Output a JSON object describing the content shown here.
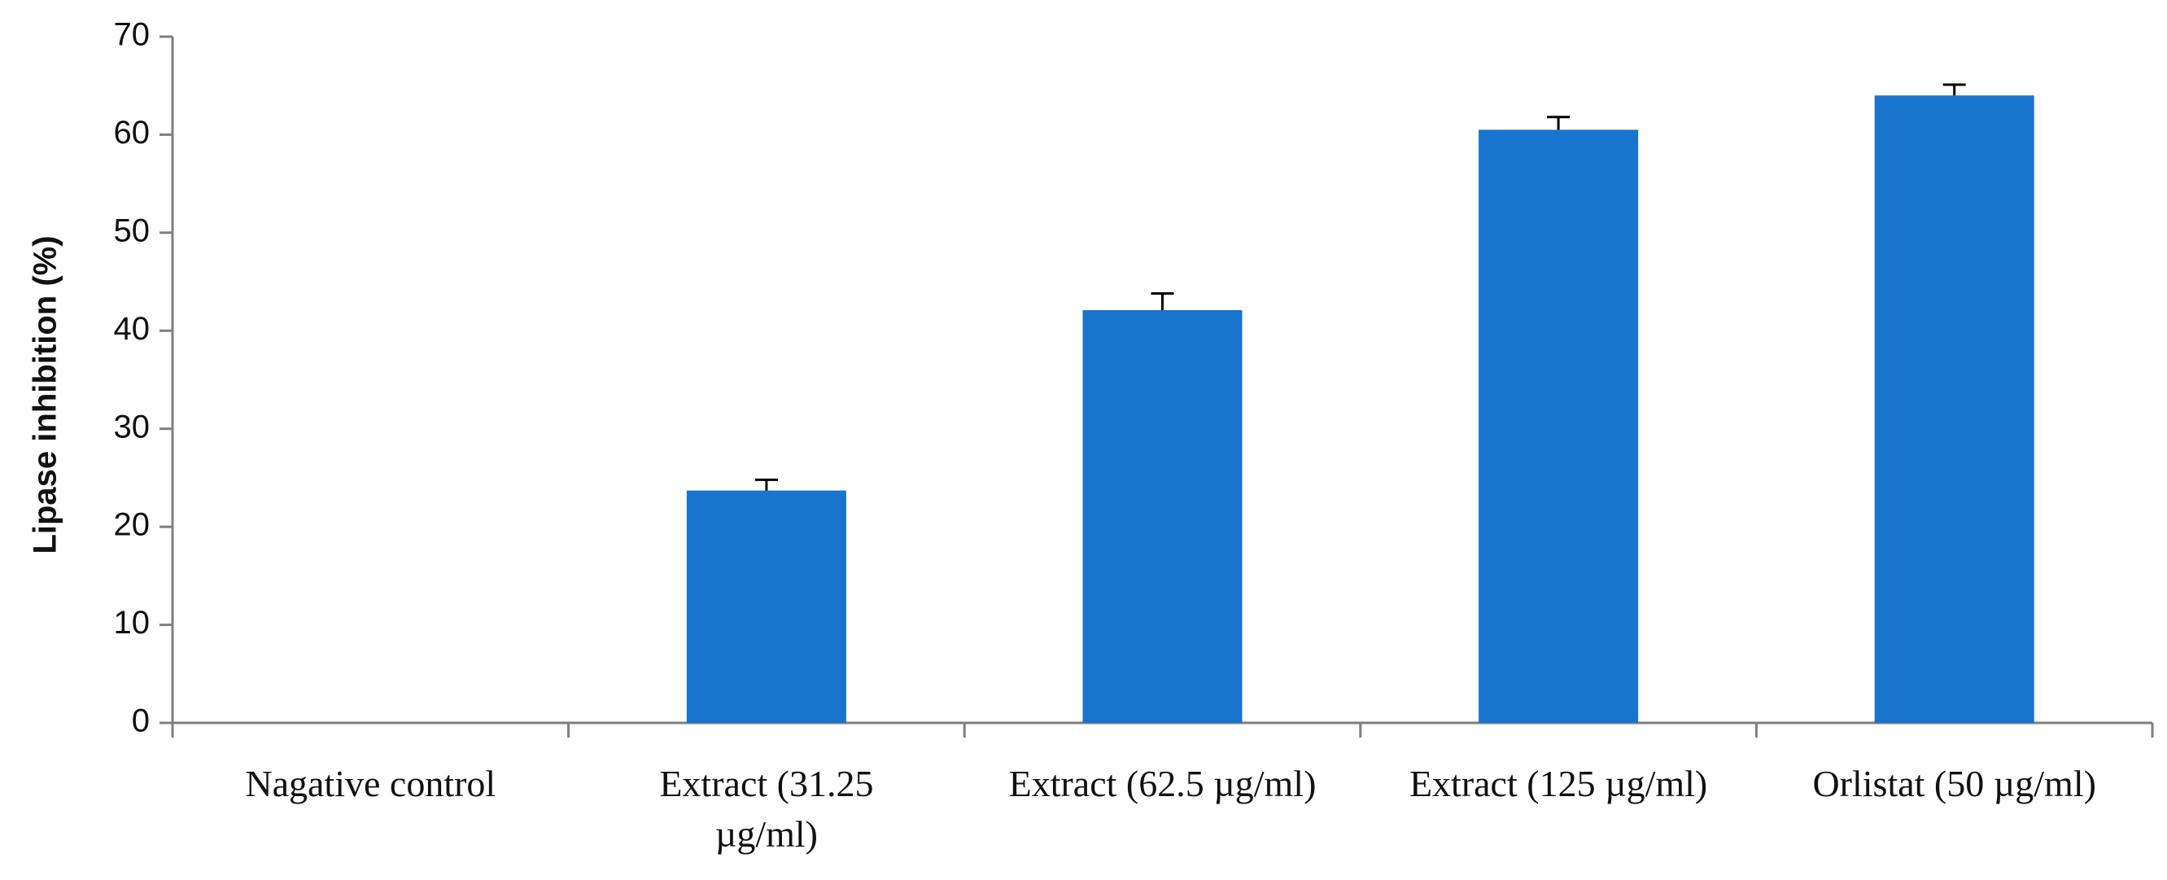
{
  "chart_data": {
    "type": "bar",
    "title": "",
    "xlabel": "",
    "ylabel": "Lipase inhibition (%)",
    "ylim": [
      0,
      70
    ],
    "yticks": [
      0,
      10,
      20,
      30,
      40,
      50,
      60,
      70
    ],
    "ytick_labels": [
      "0",
      "10",
      "20",
      "30",
      "40",
      "50",
      "60",
      "70"
    ],
    "categories": [
      [
        "Nagative control"
      ],
      [
        "Extract (31.25",
        "µg/ml)"
      ],
      [
        "Extract (62.5 µg/ml)"
      ],
      [
        "Extract (125 µg/ml)"
      ],
      [
        "Orlistat (50 µg/ml)"
      ]
    ],
    "values": [
      0,
      23.7,
      42.1,
      60.5,
      64.0
    ],
    "errors": [
      0,
      1.1,
      1.7,
      1.3,
      1.1
    ],
    "grid": false,
    "legend": "none",
    "bar_color": "#1874CD",
    "axis_color": "#7f7f7f"
  }
}
